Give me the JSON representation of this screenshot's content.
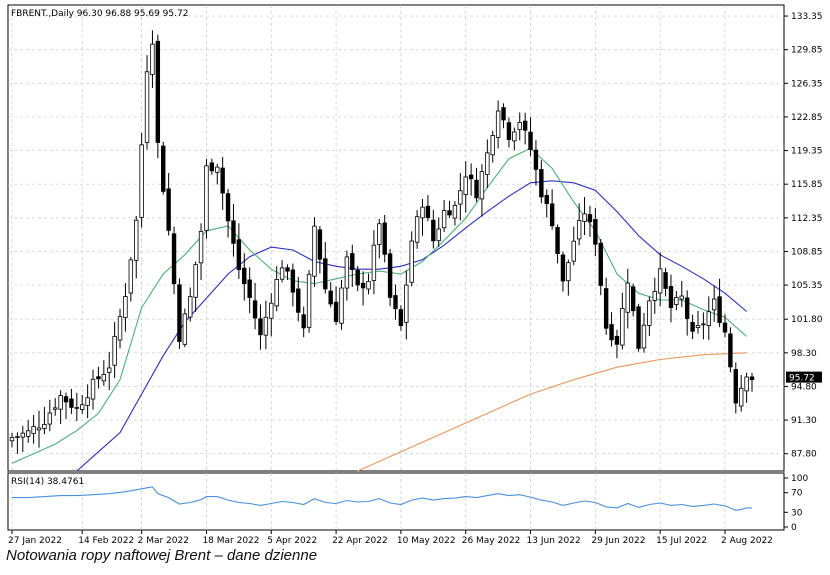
{
  "caption": "Notowania ropy naftowej Brent – dane dzienne",
  "colors": {
    "candle": "#000000",
    "ma_short": "#4caf78",
    "ma_mid": "#2a2fbf",
    "ma_long": "#e8955a",
    "rsi": "#4a90d9",
    "grid": "#c8c8c8",
    "price_tag_bg": "#000000"
  },
  "chart_data": [
    {
      "type": "candlestick",
      "header": "FBRENT.,Daily  96.30 96.88 95.69 95.72",
      "current_price_label": "95.72",
      "current_price": 95.72,
      "grid": true,
      "ylim": [
        86.0,
        134.5
      ],
      "yticks": [
        87.8,
        91.3,
        94.8,
        98.3,
        101.8,
        105.35,
        108.85,
        112.35,
        115.85,
        119.35,
        122.85,
        126.35,
        129.85,
        133.35
      ],
      "ytick_labels": [
        "87.80",
        "91.30",
        "94.80",
        "98.30",
        "101.80",
        "105.35",
        "108.85",
        "112.35",
        "115.85",
        "119.35",
        "122.85",
        "126.35",
        "129.85",
        "133.35"
      ],
      "xticks": [
        {
          "i": 0,
          "label": "27 Jan 2022"
        },
        {
          "i": 13,
          "label": "14 Feb 2022"
        },
        {
          "i": 24,
          "label": "2 Mar 2022"
        },
        {
          "i": 36,
          "label": "18 Mar 2022"
        },
        {
          "i": 48,
          "label": "5 Apr 2022"
        },
        {
          "i": 60,
          "label": "22 Apr 2022"
        },
        {
          "i": 72,
          "label": "10 May 2022"
        },
        {
          "i": 84,
          "label": "26 May 2022"
        },
        {
          "i": 96,
          "label": "13 Jun 2022"
        },
        {
          "i": 108,
          "label": "29 Jun 2022"
        },
        {
          "i": 120,
          "label": "15 Jul 2022"
        },
        {
          "i": 132,
          "label": "2 Aug 2022"
        }
      ],
      "close_path": [
        [
          0,
          89.5
        ],
        [
          3,
          90.0
        ],
        [
          6,
          91.3
        ],
        [
          9,
          93.8
        ],
        [
          12,
          92.5
        ],
        [
          15,
          95.0
        ],
        [
          18,
          97.0
        ],
        [
          21,
          104.5
        ],
        [
          23,
          112.0
        ],
        [
          25,
          128.0
        ],
        [
          26,
          131.0
        ],
        [
          27,
          120.0
        ],
        [
          29,
          111.0
        ],
        [
          31,
          100.0
        ],
        [
          33,
          104.0
        ],
        [
          35,
          111.0
        ],
        [
          36,
          117.5
        ],
        [
          38,
          118.0
        ],
        [
          40,
          112.0
        ],
        [
          42,
          107.0
        ],
        [
          44,
          104.0
        ],
        [
          46,
          100.0
        ],
        [
          48,
          104.0
        ],
        [
          50,
          107.5
        ],
        [
          52,
          105.0
        ],
        [
          54,
          100.5
        ],
        [
          56,
          111.5
        ],
        [
          58,
          105.0
        ],
        [
          60,
          102.0
        ],
        [
          62,
          108.0
        ],
        [
          64,
          105.0
        ],
        [
          66,
          106.0
        ],
        [
          68,
          112.0
        ],
        [
          70,
          104.0
        ],
        [
          72,
          101.0
        ],
        [
          74,
          110.0
        ],
        [
          76,
          114.0
        ],
        [
          78,
          110.0
        ],
        [
          80,
          113.0
        ],
        [
          82,
          113.5
        ],
        [
          84,
          117.0
        ],
        [
          86,
          115.0
        ],
        [
          88,
          119.0
        ],
        [
          90,
          124.0
        ],
        [
          92,
          121.0
        ],
        [
          94,
          122.5
        ],
        [
          96,
          119.5
        ],
        [
          98,
          115.0
        ],
        [
          100,
          112.0
        ],
        [
          102,
          105.5
        ],
        [
          104,
          110.0
        ],
        [
          106,
          113.0
        ],
        [
          108,
          110.0
        ],
        [
          110,
          101.0
        ],
        [
          112,
          99.5
        ],
        [
          114,
          106.0
        ],
        [
          116,
          99.0
        ],
        [
          118,
          104.0
        ],
        [
          120,
          106.5
        ],
        [
          122,
          103.0
        ],
        [
          124,
          104.0
        ],
        [
          126,
          100.0
        ],
        [
          128,
          101.5
        ],
        [
          130,
          103.5
        ],
        [
          132,
          100.5
        ],
        [
          134,
          93.5
        ],
        [
          135,
          94.8
        ],
        [
          136,
          96.3
        ],
        [
          137,
          95.72
        ]
      ],
      "ma_short": [
        [
          0,
          86.8
        ],
        [
          4,
          87.8
        ],
        [
          8,
          88.8
        ],
        [
          12,
          90.2
        ],
        [
          16,
          92.0
        ],
        [
          20,
          95.5
        ],
        [
          24,
          103.0
        ],
        [
          28,
          106.5
        ],
        [
          32,
          108.5
        ],
        [
          36,
          111.0
        ],
        [
          40,
          111.5
        ],
        [
          44,
          109.0
        ],
        [
          48,
          107.0
        ],
        [
          52,
          105.8
        ],
        [
          56,
          105.5
        ],
        [
          60,
          106.0
        ],
        [
          64,
          106.5
        ],
        [
          68,
          106.8
        ],
        [
          72,
          106.5
        ],
        [
          76,
          107.8
        ],
        [
          80,
          110.0
        ],
        [
          84,
          112.3
        ],
        [
          88,
          115.5
        ],
        [
          92,
          118.5
        ],
        [
          96,
          119.6
        ],
        [
          100,
          117.5
        ],
        [
          104,
          114.0
        ],
        [
          108,
          111.0
        ],
        [
          112,
          106.5
        ],
        [
          116,
          104.5
        ],
        [
          120,
          103.8
        ],
        [
          124,
          103.8
        ],
        [
          128,
          102.8
        ],
        [
          132,
          102.0
        ],
        [
          136,
          100.0
        ]
      ],
      "ma_mid": [
        [
          8,
          84.0
        ],
        [
          12,
          86.0
        ],
        [
          16,
          88.0
        ],
        [
          20,
          90.0
        ],
        [
          24,
          94.0
        ],
        [
          28,
          98.0
        ],
        [
          32,
          101.5
        ],
        [
          36,
          104.0
        ],
        [
          40,
          106.5
        ],
        [
          44,
          108.3
        ],
        [
          48,
          109.3
        ],
        [
          52,
          109.0
        ],
        [
          56,
          107.8
        ],
        [
          60,
          107.3
        ],
        [
          64,
          107.0
        ],
        [
          68,
          107.0
        ],
        [
          72,
          107.3
        ],
        [
          76,
          108.0
        ],
        [
          80,
          109.5
        ],
        [
          84,
          111.3
        ],
        [
          88,
          113.0
        ],
        [
          92,
          114.6
        ],
        [
          96,
          116.0
        ],
        [
          100,
          116.2
        ],
        [
          104,
          116.0
        ],
        [
          108,
          115.2
        ],
        [
          112,
          113.0
        ],
        [
          116,
          110.5
        ],
        [
          120,
          108.5
        ],
        [
          124,
          107.3
        ],
        [
          128,
          106.0
        ],
        [
          132,
          104.5
        ],
        [
          136,
          102.6
        ]
      ],
      "ma_long": [
        [
          64,
          85.5
        ],
        [
          72,
          88.0
        ],
        [
          80,
          90.0
        ],
        [
          88,
          92.0
        ],
        [
          96,
          94.0
        ],
        [
          104,
          95.5
        ],
        [
          112,
          96.8
        ],
        [
          120,
          97.6
        ],
        [
          128,
          98.1
        ],
        [
          136,
          98.3
        ]
      ]
    },
    {
      "type": "line",
      "label": "RSI(14) 38.4761",
      "ylim": [
        0,
        100
      ],
      "yticks": [
        0,
        30,
        70,
        100
      ],
      "ytick_labels": [
        "0",
        "30",
        "70",
        "100"
      ],
      "rsi_path": [
        [
          0,
          60
        ],
        [
          3,
          60
        ],
        [
          6,
          62
        ],
        [
          9,
          64
        ],
        [
          12,
          64
        ],
        [
          15,
          66
        ],
        [
          18,
          68
        ],
        [
          21,
          72
        ],
        [
          23,
          76
        ],
        [
          25,
          80
        ],
        [
          26,
          82
        ],
        [
          27,
          68
        ],
        [
          29,
          60
        ],
        [
          31,
          47
        ],
        [
          33,
          50
        ],
        [
          35,
          56
        ],
        [
          36,
          62
        ],
        [
          38,
          62
        ],
        [
          40,
          55
        ],
        [
          42,
          50
        ],
        [
          44,
          48
        ],
        [
          46,
          44
        ],
        [
          48,
          48
        ],
        [
          50,
          52
        ],
        [
          52,
          50
        ],
        [
          54,
          46
        ],
        [
          56,
          58
        ],
        [
          58,
          50
        ],
        [
          60,
          48
        ],
        [
          62,
          54
        ],
        [
          64,
          51
        ],
        [
          66,
          52
        ],
        [
          68,
          58
        ],
        [
          70,
          49
        ],
        [
          72,
          46
        ],
        [
          74,
          55
        ],
        [
          76,
          59
        ],
        [
          78,
          55
        ],
        [
          80,
          58
        ],
        [
          82,
          59
        ],
        [
          84,
          62
        ],
        [
          86,
          60
        ],
        [
          88,
          64
        ],
        [
          90,
          68
        ],
        [
          92,
          64
        ],
        [
          94,
          66
        ],
        [
          96,
          61
        ],
        [
          98,
          55
        ],
        [
          100,
          51
        ],
        [
          102,
          44
        ],
        [
          104,
          49
        ],
        [
          106,
          53
        ],
        [
          108,
          50
        ],
        [
          110,
          41
        ],
        [
          112,
          39
        ],
        [
          114,
          48
        ],
        [
          116,
          40
        ],
        [
          118,
          46
        ],
        [
          120,
          49
        ],
        [
          122,
          44
        ],
        [
          124,
          46
        ],
        [
          126,
          42
        ],
        [
          128,
          44
        ],
        [
          130,
          47
        ],
        [
          132,
          43
        ],
        [
          134,
          34
        ],
        [
          135,
          36
        ],
        [
          136,
          39
        ],
        [
          137,
          38.48
        ]
      ]
    }
  ]
}
